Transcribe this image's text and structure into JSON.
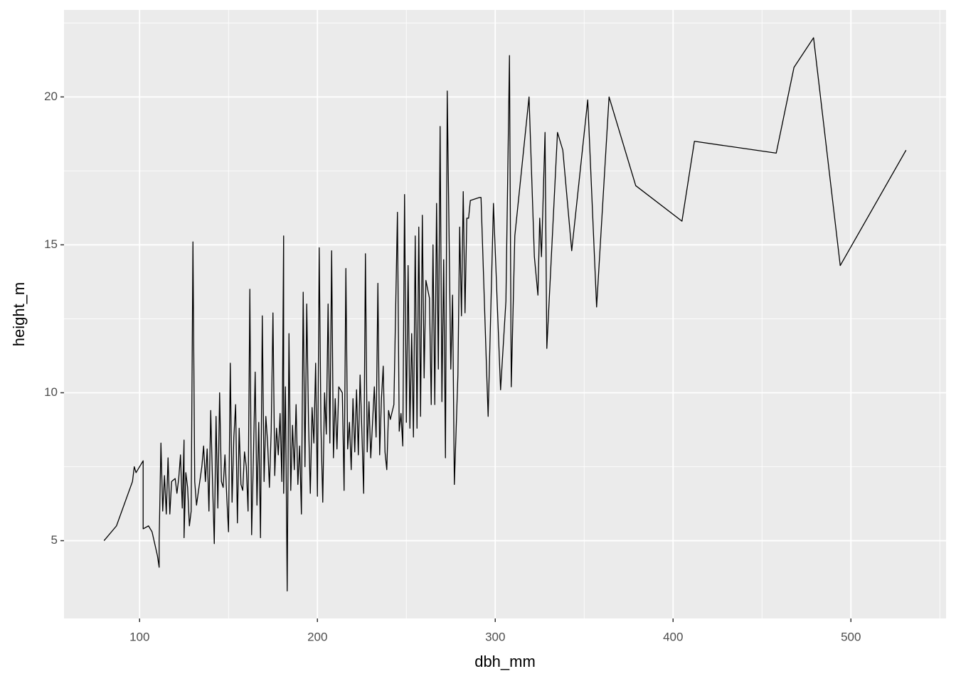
{
  "chart_data": {
    "type": "line",
    "x_label": "dbh_mm",
    "y_label": "height_m",
    "xlim": [
      57.5,
      553.5
    ],
    "ylim": [
      2.37,
      22.94
    ],
    "xticks": [
      100,
      200,
      300,
      400,
      500
    ],
    "yticks": [
      5,
      10,
      15,
      20
    ],
    "x_minor_ticks": [
      150,
      250,
      350,
      450,
      550
    ],
    "y_minor_ticks": [
      7.5,
      12.5,
      17.5,
      22.5
    ],
    "grid": true,
    "color": "#000000",
    "background": "#ebebeb",
    "x": [
      80,
      87,
      96,
      97,
      98,
      102,
      102,
      105,
      107,
      110,
      111,
      111,
      112,
      113,
      114,
      115,
      116,
      117,
      118,
      120,
      121,
      122,
      123,
      124,
      125,
      125,
      126,
      127,
      128,
      129,
      130,
      131,
      132,
      135,
      136,
      137,
      138,
      139,
      140,
      141,
      142,
      143,
      144,
      145,
      146,
      147,
      148,
      149,
      150,
      151,
      152,
      153,
      154,
      155,
      156,
      157,
      158,
      159,
      160,
      161,
      162,
      163,
      164,
      165,
      166,
      167,
      168,
      169,
      170,
      171,
      172,
      173,
      174,
      175,
      176,
      177,
      178,
      179,
      180,
      181,
      181,
      182,
      183,
      184,
      185,
      186,
      187,
      188,
      189,
      190,
      191,
      192,
      193,
      194,
      195,
      196,
      197,
      198,
      199,
      200,
      201,
      202,
      203,
      204,
      205,
      206,
      207,
      208,
      209,
      210,
      211,
      212,
      214,
      215,
      216,
      217,
      218,
      219,
      220,
      221,
      222,
      223,
      224,
      225,
      226,
      227,
      228,
      229,
      230,
      231,
      232,
      233,
      234,
      235,
      236,
      237,
      238,
      239,
      240,
      241,
      243,
      245,
      246,
      247,
      248,
      249,
      250,
      251,
      252,
      253,
      254,
      255,
      256,
      257,
      258,
      259,
      260,
      261,
      263,
      264,
      265,
      266,
      267,
      268,
      269,
      270,
      271,
      272,
      273,
      275,
      276,
      277,
      279,
      280,
      281,
      282,
      283,
      284,
      285,
      286,
      291,
      292,
      295,
      296,
      299,
      301,
      303,
      306,
      308,
      309,
      311,
      319,
      322,
      324,
      325,
      326,
      328,
      329,
      335,
      338,
      343,
      352,
      357,
      364,
      379,
      405,
      412,
      458,
      468,
      479,
      494,
      531
    ],
    "values": [
      5.0,
      5.5,
      7.0,
      7.5,
      7.3,
      7.7,
      5.4,
      5.5,
      5.3,
      4.5,
      4.1,
      5.0,
      8.3,
      6.0,
      7.2,
      5.9,
      7.8,
      5.9,
      7.0,
      7.1,
      6.6,
      7.1,
      7.9,
      6.1,
      8.4,
      5.1,
      7.3,
      6.8,
      5.5,
      6.0,
      15.1,
      7.0,
      6.2,
      7.5,
      8.2,
      7.0,
      8.1,
      6.0,
      9.4,
      7.0,
      4.9,
      9.2,
      6.1,
      10.0,
      7.0,
      6.8,
      7.9,
      6.5,
      5.3,
      11.0,
      6.3,
      8.5,
      9.6,
      5.6,
      8.8,
      6.9,
      6.7,
      8.0,
      7.5,
      6.0,
      13.5,
      5.2,
      7.8,
      10.7,
      6.2,
      9.0,
      5.1,
      12.6,
      7.0,
      9.2,
      8.3,
      6.8,
      8.7,
      12.7,
      7.2,
      8.8,
      7.9,
      9.3,
      7.0,
      15.3,
      6.6,
      10.2,
      3.3,
      12.0,
      6.7,
      8.9,
      7.4,
      9.6,
      6.9,
      8.2,
      5.9,
      13.4,
      7.5,
      13.0,
      9.0,
      6.6,
      9.5,
      8.3,
      11.0,
      6.5,
      14.9,
      8.8,
      6.3,
      10.0,
      8.6,
      13.0,
      8.3,
      14.8,
      7.8,
      9.8,
      8.1,
      10.2,
      10.0,
      6.7,
      14.2,
      8.1,
      9.0,
      7.4,
      9.8,
      8.0,
      10.1,
      7.9,
      10.6,
      8.7,
      6.6,
      14.7,
      8.0,
      9.7,
      7.8,
      9.0,
      10.2,
      8.5,
      13.7,
      7.9,
      9.8,
      10.9,
      8.0,
      7.4,
      9.4,
      9.1,
      9.6,
      16.1,
      8.7,
      9.3,
      8.2,
      16.7,
      9.0,
      14.3,
      8.8,
      12.0,
      8.5,
      15.3,
      8.8,
      15.6,
      9.2,
      16.0,
      10.5,
      13.8,
      13.2,
      9.6,
      15.0,
      9.6,
      16.4,
      10.8,
      19.0,
      9.7,
      14.5,
      7.8,
      20.2,
      10.8,
      13.3,
      6.9,
      10.6,
      15.6,
      12.6,
      16.8,
      12.7,
      15.9,
      15.9,
      16.5,
      16.6,
      16.6,
      11.0,
      9.2,
      16.4,
      13.2,
      10.1,
      13.1,
      21.4,
      10.2,
      15.3,
      20.0,
      14.6,
      13.3,
      15.9,
      14.6,
      18.8,
      11.5,
      18.8,
      18.2,
      14.8,
      19.9,
      12.9,
      20.0,
      17.0,
      15.8,
      18.5,
      18.1,
      21.0,
      22.0,
      14.3,
      18.2
    ]
  }
}
